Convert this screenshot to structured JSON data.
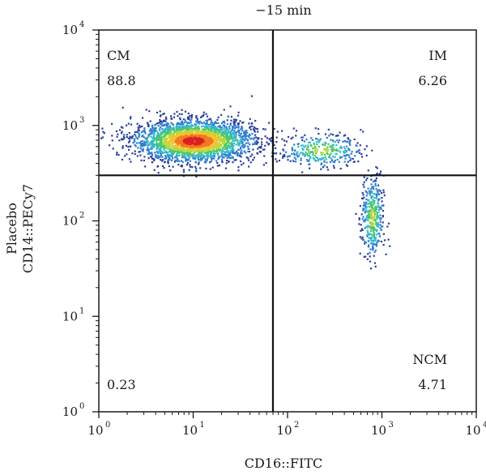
{
  "chart_data": {
    "type": "scatter",
    "title": "−15 min",
    "xlabel": "CD16::FITC",
    "ylabel_lines": [
      "Placebo",
      "CD14::PECy7"
    ],
    "x_scale": "log",
    "y_scale": "log",
    "xlim": [
      1,
      10000
    ],
    "ylim": [
      1,
      10000
    ],
    "x_ticks": [
      {
        "value": 1,
        "base": "10",
        "exp": "0"
      },
      {
        "value": 10,
        "base": "10",
        "exp": "1"
      },
      {
        "value": 100,
        "base": "10",
        "exp": "2"
      },
      {
        "value": 1000,
        "base": "10",
        "exp": "3"
      },
      {
        "value": 10000,
        "base": "10",
        "exp": "4"
      }
    ],
    "y_ticks": [
      {
        "value": 1,
        "base": "10",
        "exp": "0"
      },
      {
        "value": 10,
        "base": "10",
        "exp": "1"
      },
      {
        "value": 100,
        "base": "10",
        "exp": "2"
      },
      {
        "value": 1000,
        "base": "10",
        "exp": "3"
      },
      {
        "value": 10000,
        "base": "10",
        "exp": "4"
      }
    ],
    "gates": {
      "x": 70,
      "y": 300
    },
    "quadrants": [
      {
        "name": "CM",
        "percent": "88.8",
        "position": "top-left"
      },
      {
        "name": "IM",
        "percent": "6.26",
        "position": "top-right"
      },
      {
        "name": "NCM",
        "percent": "4.71",
        "position": "bottom-right"
      },
      {
        "name": "",
        "percent": "0.23",
        "position": "bottom-left"
      }
    ],
    "populations": [
      {
        "label": "CM",
        "center": [
          10,
          700
        ],
        "spread": [
          0.32,
          0.11
        ],
        "count": 2600
      },
      {
        "label": "IM",
        "center": [
          220,
          560
        ],
        "spread": [
          0.22,
          0.09
        ],
        "count": 320
      },
      {
        "label": "NCM",
        "center": [
          780,
          110
        ],
        "spread": [
          0.06,
          0.22
        ],
        "count": 380
      }
    ],
    "density_colors": [
      "#2b3f9e",
      "#2f7fd1",
      "#33b8c8",
      "#4cc76a",
      "#b9d83a",
      "#f2c230",
      "#f0791f",
      "#d92020"
    ]
  }
}
